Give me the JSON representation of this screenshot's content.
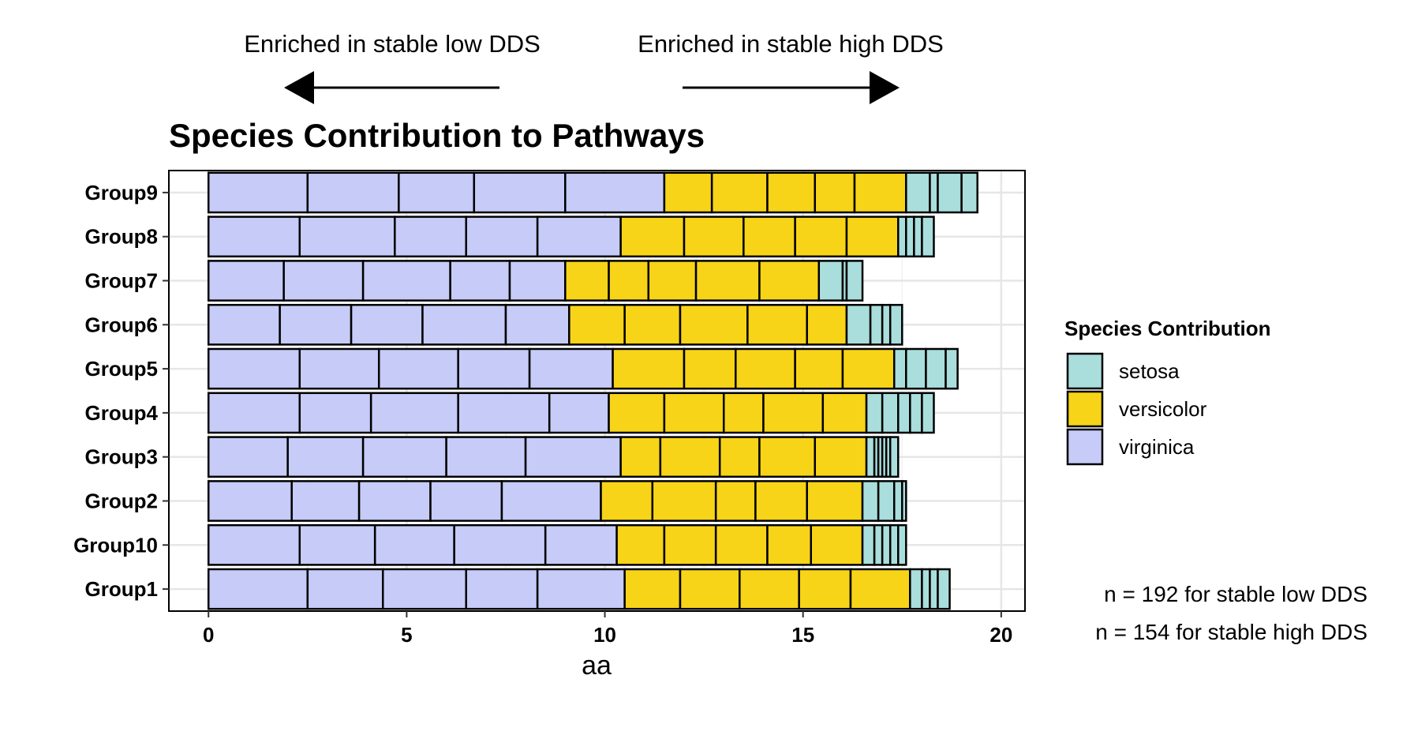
{
  "annotations": {
    "left_label": "Enriched in stable low DDS",
    "right_label": "Enriched in stable high DDS",
    "n_low": "n = 192 for stable low  DDS",
    "n_high": "n = 154 for stable high DDS"
  },
  "colors": {
    "setosa": "#A9DEDC",
    "versicolor": "#F7D417",
    "virginica": "#C6CBF7",
    "outline": "#000000",
    "grid": "#E6E6E6"
  },
  "chart_data": {
    "type": "bar",
    "orientation": "horizontal",
    "stacked": true,
    "title": "Species Contribution to Pathways",
    "xlabel": "aa",
    "ylabel": "",
    "xlim": [
      -1.0,
      20.6
    ],
    "x_ticks": [
      0,
      5,
      10,
      15,
      20
    ],
    "grid": true,
    "legend": {
      "title": "Species Contribution",
      "position": "right",
      "entries": [
        "setosa",
        "versicolor",
        "virginica"
      ]
    },
    "categories": [
      "Group9",
      "Group8",
      "Group7",
      "Group6",
      "Group5",
      "Group4",
      "Group3",
      "Group2",
      "Group10",
      "Group1"
    ],
    "groups": [
      {
        "name": "Group9",
        "segments": {
          "virginica": [
            2.5,
            2.3,
            1.9,
            2.3,
            2.5
          ],
          "versicolor": [
            1.2,
            1.4,
            1.2,
            1.0,
            1.3
          ],
          "setosa": [
            0.6,
            0.2,
            0.6,
            0.4
          ]
        }
      },
      {
        "name": "Group8",
        "segments": {
          "virginica": [
            2.3,
            2.4,
            1.8,
            1.8,
            2.1
          ],
          "versicolor": [
            1.6,
            1.5,
            1.3,
            1.3,
            1.3
          ],
          "setosa": [
            0.2,
            0.2,
            0.2,
            0.3
          ]
        }
      },
      {
        "name": "Group7",
        "segments": {
          "virginica": [
            1.9,
            2.0,
            2.2,
            1.5,
            1.4
          ],
          "versicolor": [
            1.1,
            1.0,
            1.2,
            1.6,
            1.5
          ],
          "setosa": [
            0.6,
            0.1,
            0.4
          ]
        }
      },
      {
        "name": "Group6",
        "segments": {
          "virginica": [
            1.8,
            1.8,
            1.8,
            2.1,
            1.6
          ],
          "versicolor": [
            1.4,
            1.4,
            1.7,
            1.5,
            1.0
          ],
          "setosa": [
            0.6,
            0.3,
            0.2,
            0.3
          ]
        }
      },
      {
        "name": "Group5",
        "segments": {
          "virginica": [
            2.3,
            2.0,
            2.0,
            1.8,
            2.1
          ],
          "versicolor": [
            1.8,
            1.3,
            1.5,
            1.2,
            1.3
          ],
          "setosa": [
            0.3,
            0.5,
            0.5,
            0.3
          ]
        }
      },
      {
        "name": "Group4",
        "segments": {
          "virginica": [
            2.3,
            1.8,
            2.2,
            2.3,
            1.5
          ],
          "versicolor": [
            1.4,
            1.5,
            1.0,
            1.5,
            1.1
          ],
          "setosa": [
            0.4,
            0.4,
            0.3,
            0.3,
            0.3
          ]
        }
      },
      {
        "name": "Group3",
        "segments": {
          "virginica": [
            2.0,
            1.9,
            2.1,
            2.0,
            2.4
          ],
          "versicolor": [
            1.0,
            1.5,
            1.0,
            1.4,
            1.3
          ],
          "setosa": [
            0.2,
            0.1,
            0.1,
            0.1,
            0.1,
            0.2
          ]
        }
      },
      {
        "name": "Group2",
        "segments": {
          "virginica": [
            2.1,
            1.7,
            1.8,
            1.8,
            2.5
          ],
          "versicolor": [
            1.3,
            1.6,
            1.0,
            1.3,
            1.4
          ],
          "setosa": [
            0.4,
            0.4,
            0.2,
            0.1
          ]
        }
      },
      {
        "name": "Group10",
        "segments": {
          "virginica": [
            2.3,
            1.9,
            2.0,
            2.3,
            1.8
          ],
          "versicolor": [
            1.2,
            1.3,
            1.3,
            1.1,
            1.3
          ],
          "setosa": [
            0.3,
            0.2,
            0.2,
            0.2,
            0.2
          ]
        }
      },
      {
        "name": "Group1",
        "segments": {
          "virginica": [
            2.5,
            1.9,
            2.1,
            1.8,
            2.2
          ],
          "versicolor": [
            1.4,
            1.5,
            1.5,
            1.3,
            1.5
          ],
          "setosa": [
            0.3,
            0.2,
            0.2,
            0.3
          ]
        }
      }
    ]
  }
}
